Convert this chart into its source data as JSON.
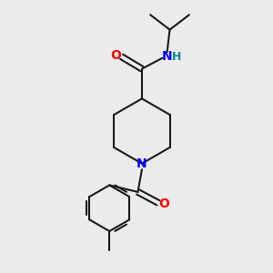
{
  "background_color": "#ebebeb",
  "bond_color": "#1a1a1a",
  "nitrogen_color": "#0000ff",
  "oxygen_color": "#ff0000",
  "nh_color": "#008b8b",
  "line_width": 1.5,
  "figsize": [
    3.0,
    3.0
  ],
  "dpi": 100,
  "xlim": [
    0,
    10
  ],
  "ylim": [
    0,
    10
  ]
}
